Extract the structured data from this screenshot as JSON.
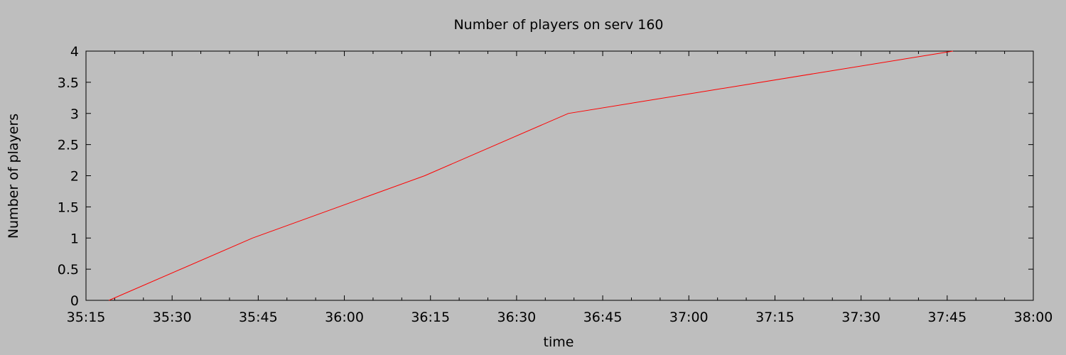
{
  "chart_data": {
    "type": "line",
    "title": "Number of players on serv 160",
    "xlabel": "time",
    "ylabel": "Number of players",
    "x_ticks": [
      "35:15",
      "35:30",
      "35:45",
      "36:00",
      "36:15",
      "36:30",
      "36:45",
      "37:00",
      "37:15",
      "37:30",
      "37:45",
      "38:00"
    ],
    "xlim": [
      "35:15",
      "38:00"
    ],
    "y_ticks": [
      "0",
      "0.5",
      "1",
      "1.5",
      "2",
      "2.5",
      "3",
      "3.5",
      "4"
    ],
    "ylim": [
      0,
      4
    ],
    "grid": false,
    "series": [
      {
        "x": [
          "35:19",
          "35:44",
          "36:14",
          "36:39",
          "37:46"
        ],
        "values": [
          0,
          1,
          2,
          3,
          4
        ]
      }
    ]
  },
  "colors": {
    "background": "#bebebe",
    "line": "#ff0000",
    "axis": "#000000"
  }
}
